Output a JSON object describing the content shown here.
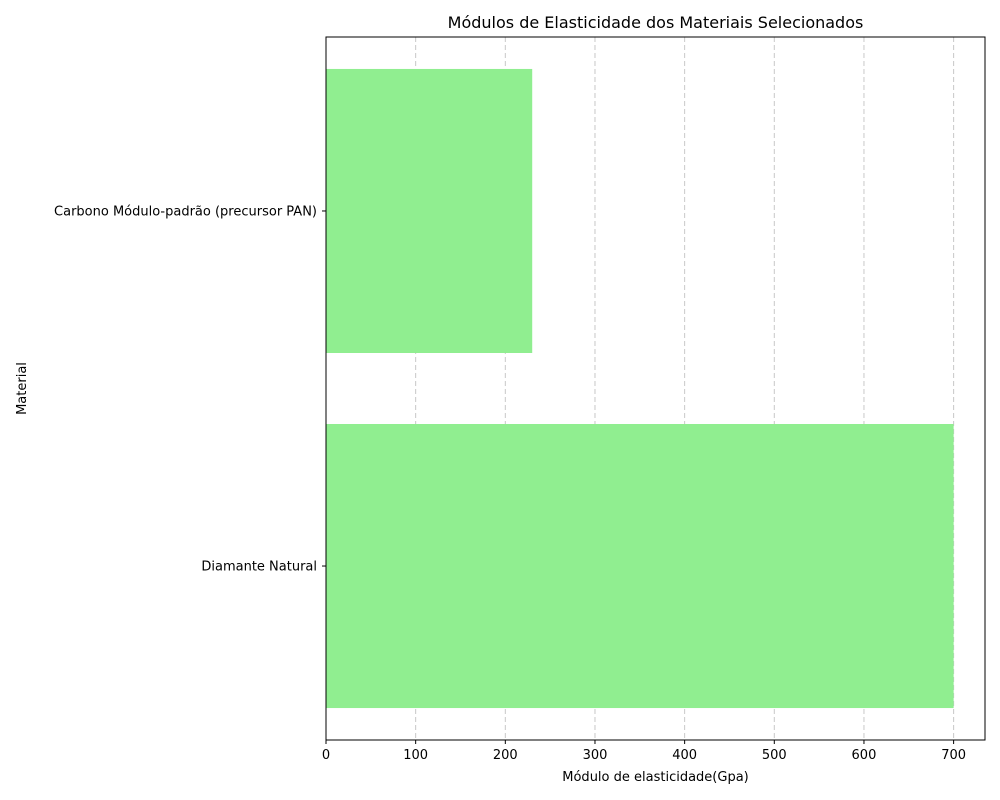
{
  "chart_data": {
    "type": "bar",
    "orientation": "horizontal",
    "title": "Módulos de Elasticidade dos Materiais Selecionados",
    "xlabel": "Módulo de elasticidade(Gpa)",
    "ylabel": "Material",
    "categories": [
      "Diamante Natural",
      "Carbono Módulo-padrão (precursor PAN)"
    ],
    "values": [
      700,
      230
    ],
    "xlim": [
      0,
      735
    ],
    "xticks": [
      0,
      100,
      200,
      300,
      400,
      500,
      600,
      700
    ],
    "grid": "x-axis dashed",
    "bar_color": "#90ee90",
    "grid_color": "#c8c8c8"
  }
}
